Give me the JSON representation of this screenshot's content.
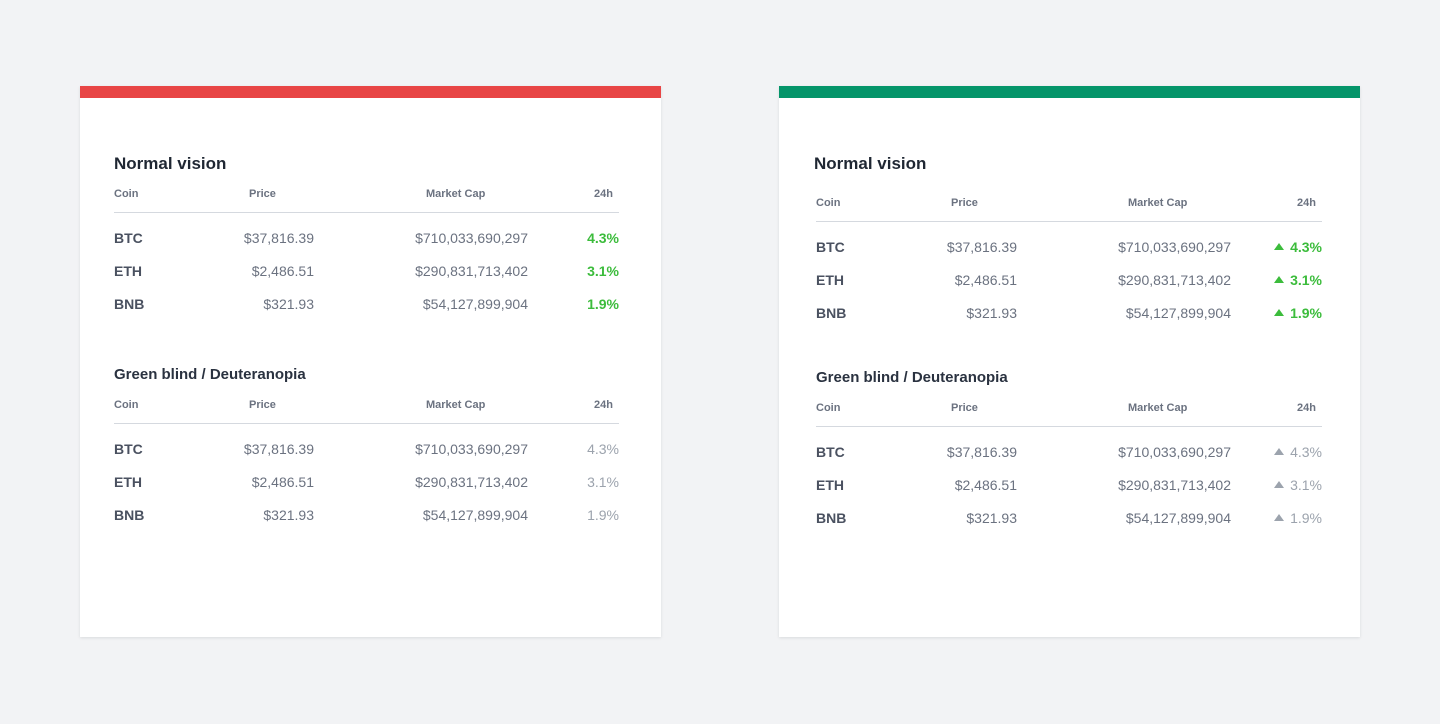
{
  "colors": {
    "background": "#f2f3f5",
    "bar_red": "#e84545",
    "bar_green": "#05956a",
    "change_green": "#3cbc3c",
    "change_gray": "#9ca3ad"
  },
  "headers": {
    "coin": "Coin",
    "price": "Price",
    "market_cap": "Market Cap",
    "change": "24h"
  },
  "cards": [
    {
      "sections": [
        {
          "title": "Normal vision",
          "rows": [
            {
              "coin": "BTC",
              "price": "$37,816.39",
              "cap": "$710,033,690,297",
              "change": "4.3%"
            },
            {
              "coin": "ETH",
              "price": "$2,486.51",
              "cap": "$290,831,713,402",
              "change": "3.1%"
            },
            {
              "coin": "BNB",
              "price": "$321.93",
              "cap": "$54,127,899,904",
              "change": "1.9%"
            }
          ]
        },
        {
          "title": "Green blind / Deuteranopia",
          "rows": [
            {
              "coin": "BTC",
              "price": "$37,816.39",
              "cap": "$710,033,690,297",
              "change": "4.3%"
            },
            {
              "coin": "ETH",
              "price": "$2,486.51",
              "cap": "$290,831,713,402",
              "change": "3.1%"
            },
            {
              "coin": "BNB",
              "price": "$321.93",
              "cap": "$54,127,899,904",
              "change": "1.9%"
            }
          ]
        }
      ]
    },
    {
      "sections": [
        {
          "title": "Normal vision",
          "rows": [
            {
              "coin": "BTC",
              "price": "$37,816.39",
              "cap": "$710,033,690,297",
              "change": "4.3%"
            },
            {
              "coin": "ETH",
              "price": "$2,486.51",
              "cap": "$290,831,713,402",
              "change": "3.1%"
            },
            {
              "coin": "BNB",
              "price": "$321.93",
              "cap": "$54,127,899,904",
              "change": "1.9%"
            }
          ]
        },
        {
          "title": "Green blind / Deuteranopia",
          "rows": [
            {
              "coin": "BTC",
              "price": "$37,816.39",
              "cap": "$710,033,690,297",
              "change": "4.3%"
            },
            {
              "coin": "ETH",
              "price": "$2,486.51",
              "cap": "$290,831,713,402",
              "change": "3.1%"
            },
            {
              "coin": "BNB",
              "price": "$321.93",
              "cap": "$54,127,899,904",
              "change": "1.9%"
            }
          ]
        }
      ]
    }
  ]
}
